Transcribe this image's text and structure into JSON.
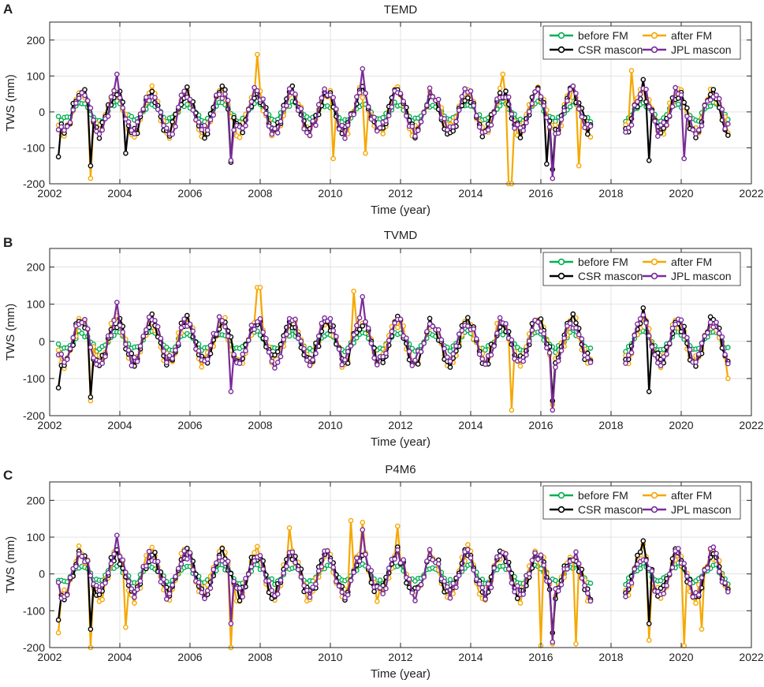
{
  "figure": {
    "panels": [
      "A",
      "B",
      "C"
    ]
  },
  "colors": {
    "before_fm": "#00b050",
    "after_fm": "#f5a800",
    "csr_mascon": "#000000",
    "jpl_mascon": "#7b2b9b"
  },
  "chart_data": [
    {
      "type": "line",
      "panel_label": "A",
      "title": "TEMD",
      "xlabel": "Time (year)",
      "ylabel": "TWS (mm)",
      "xlim": [
        2002,
        2022
      ],
      "ylim": [
        -200,
        250
      ],
      "xticks": [
        "2002",
        "2004",
        "2006",
        "2008",
        "2010",
        "2012",
        "2014",
        "2016",
        "2018",
        "2020",
        "2022"
      ],
      "yticks": [
        "-200",
        "-100",
        "0",
        "100",
        "200"
      ],
      "grid": true,
      "legend_position": "top-right",
      "series": [
        {
          "name": "before FM",
          "key": "before",
          "amp": 35,
          "seed": 1,
          "extremes": []
        },
        {
          "name": "after FM",
          "key": "after",
          "amp": 55,
          "seed": 2,
          "extremes": [
            [
              2003.2,
              -185
            ],
            [
              2007.9,
              160
            ],
            [
              2010.1,
              -130
            ],
            [
              2011.0,
              -115
            ],
            [
              2015.1,
              -210
            ],
            [
              2015.2,
              -205
            ],
            [
              2018.6,
              115
            ],
            [
              2017.1,
              -150
            ],
            [
              2014.9,
              105
            ]
          ]
        },
        {
          "name": "CSR mascon",
          "key": "csr",
          "amp": 55,
          "seed": 3,
          "extremes": [
            [
              2002.2,
              -125
            ],
            [
              2003.2,
              -150
            ],
            [
              2004.2,
              -115
            ],
            [
              2007.2,
              -140
            ],
            [
              2016.2,
              -145
            ],
            [
              2016.3,
              -160
            ],
            [
              2019.1,
              -135
            ],
            [
              2018.9,
              90
            ]
          ]
        },
        {
          "name": "JPL mascon",
          "key": "jpl",
          "amp": 55,
          "seed": 4,
          "extremes": [
            [
              2003.9,
              105
            ],
            [
              2010.9,
              120
            ],
            [
              2016.3,
              -185
            ],
            [
              2007.2,
              -135
            ],
            [
              2020.1,
              -130
            ]
          ]
        }
      ]
    },
    {
      "type": "line",
      "panel_label": "B",
      "title": "TVMD",
      "xlabel": "Time (year)",
      "ylabel": "TWS (mm)",
      "xlim": [
        2002,
        2022
      ],
      "ylim": [
        -200,
        250
      ],
      "xticks": [
        "2002",
        "2004",
        "2006",
        "2008",
        "2010",
        "2012",
        "2014",
        "2016",
        "2018",
        "2020",
        "2022"
      ],
      "yticks": [
        "-200",
        "-100",
        "0",
        "100",
        "200"
      ],
      "grid": true,
      "legend_position": "top-right",
      "series": [
        {
          "name": "before FM",
          "key": "before",
          "amp": 35,
          "seed": 5,
          "extremes": []
        },
        {
          "name": "after FM",
          "key": "after",
          "amp": 55,
          "seed": 6,
          "extremes": [
            [
              2003.2,
              -160
            ],
            [
              2007.9,
              145
            ],
            [
              2008.0,
              145
            ],
            [
              2010.7,
              135
            ],
            [
              2015.2,
              -185
            ],
            [
              2016.3,
              -170
            ],
            [
              2021.3,
              -100
            ]
          ]
        },
        {
          "name": "CSR mascon",
          "key": "csr",
          "amp": 55,
          "seed": 7,
          "extremes": [
            [
              2002.2,
              -125
            ],
            [
              2003.2,
              -150
            ],
            [
              2016.3,
              -160
            ],
            [
              2019.1,
              -135
            ],
            [
              2018.9,
              90
            ]
          ]
        },
        {
          "name": "JPL mascon",
          "key": "jpl",
          "amp": 55,
          "seed": 8,
          "extremes": [
            [
              2003.9,
              105
            ],
            [
              2010.9,
              120
            ],
            [
              2016.3,
              -185
            ],
            [
              2007.2,
              -135
            ]
          ]
        }
      ]
    },
    {
      "type": "line",
      "panel_label": "C",
      "title": "P4M6",
      "xlabel": "Time (year)",
      "ylabel": "TWS (mm)",
      "xlim": [
        2002,
        2022
      ],
      "ylim": [
        -200,
        250
      ],
      "xticks": [
        "2002",
        "2004",
        "2006",
        "2008",
        "2010",
        "2012",
        "2014",
        "2016",
        "2018",
        "2020",
        "2022"
      ],
      "yticks": [
        "-200",
        "-100",
        "0",
        "100",
        "200"
      ],
      "grid": true,
      "legend_position": "top-right",
      "series": [
        {
          "name": "before FM",
          "key": "before",
          "amp": 35,
          "seed": 9,
          "extremes": []
        },
        {
          "name": "after FM",
          "key": "after",
          "amp": 60,
          "seed": 10,
          "extremes": [
            [
              2002.2,
              -160
            ],
            [
              2003.2,
              -200
            ],
            [
              2004.2,
              -145
            ],
            [
              2007.2,
              -210
            ],
            [
              2008.8,
              125
            ],
            [
              2010.6,
              145
            ],
            [
              2010.9,
              140
            ],
            [
              2011.9,
              130
            ],
            [
              2016.0,
              -195
            ],
            [
              2016.3,
              -190
            ],
            [
              2017.0,
              -190
            ],
            [
              2019.1,
              -180
            ],
            [
              2020.1,
              -195
            ],
            [
              2020.6,
              -150
            ]
          ]
        },
        {
          "name": "CSR mascon",
          "key": "csr",
          "amp": 55,
          "seed": 11,
          "extremes": [
            [
              2002.2,
              -125
            ],
            [
              2003.2,
              -150
            ],
            [
              2016.3,
              -160
            ],
            [
              2019.1,
              -135
            ],
            [
              2018.9,
              90
            ]
          ]
        },
        {
          "name": "JPL mascon",
          "key": "jpl",
          "amp": 55,
          "seed": 12,
          "extremes": [
            [
              2003.9,
              105
            ],
            [
              2010.9,
              120
            ],
            [
              2016.3,
              -185
            ],
            [
              2007.2,
              -135
            ]
          ]
        }
      ]
    }
  ]
}
